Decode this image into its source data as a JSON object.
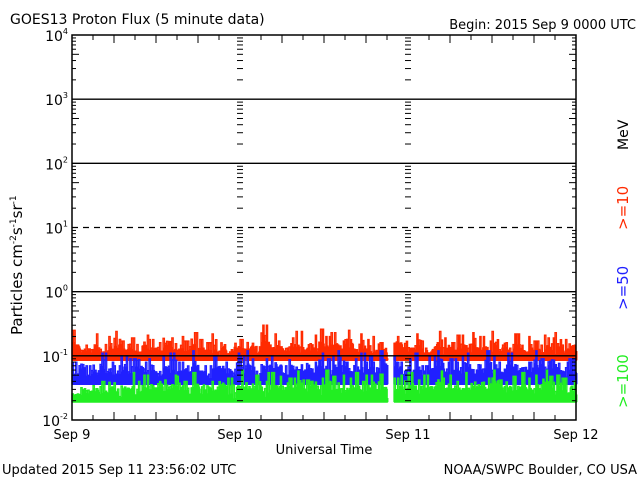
{
  "chart_data": {
    "type": "line",
    "title": "GOES13 Proton Flux (5 minute data)",
    "begin_label": "Begin: 2015 Sep 9 0000 UTC",
    "xlabel": "Universal Time",
    "ylabel_parts": [
      "Particles cm",
      "-2",
      "s",
      "-1",
      "sr",
      "-1"
    ],
    "x_unit": "hours since 2015 Sep 9 0000 UTC",
    "xlim": [
      0,
      72
    ],
    "x_ticks": [
      {
        "x": 0,
        "label": "Sep 9"
      },
      {
        "x": 24,
        "label": "Sep 10"
      },
      {
        "x": 48,
        "label": "Sep 11"
      },
      {
        "x": 72,
        "label": "Sep 12"
      }
    ],
    "yscale": "log",
    "ylim": [
      0.01,
      10000
    ],
    "y_ticks": [
      {
        "exp": "4"
      },
      {
        "exp": "3"
      },
      {
        "exp": "2"
      },
      {
        "exp": "1"
      },
      {
        "exp": "0"
      },
      {
        "exp": "-1"
      },
      {
        "exp": "-2"
      }
    ],
    "dashed_threshold": 10,
    "unit_label": "MeV",
    "series": [
      {
        "name": ">=10",
        "color": "#ff2a00",
        "low": 0.085,
        "hourly_max": [
          0.25,
          0.16,
          0.18,
          0.22,
          0.15,
          0.2,
          0.24,
          0.17,
          0.19,
          0.15,
          0.21,
          0.18,
          0.16,
          0.25,
          0.19,
          0.2,
          0.17,
          0.23,
          0.18,
          0.16,
          0.22,
          0.2,
          0.15,
          0.19,
          0.18,
          0.21,
          0.17,
          0.3,
          0.2,
          0.22,
          0.16,
          0.19,
          0.24,
          0.18,
          0.21,
          0.26,
          0.2,
          0.23,
          0.17,
          0.25,
          0.19,
          0.22,
          0.18,
          0.2,
          0.16,
          null,
          0.25,
          0.21,
          0.18,
          0.22,
          0.17,
          0.2,
          0.24,
          0.19,
          0.16,
          0.21,
          0.18,
          0.23,
          0.2,
          0.17,
          0.24,
          0.19,
          0.16,
          0.22,
          0.18,
          0.2,
          0.17,
          0.21,
          0.19,
          0.23,
          0.18,
          0.2
        ]
      },
      {
        "name": ">=50",
        "color": "#2020ff",
        "low": 0.036,
        "hourly_max": [
          0.08,
          0.1,
          0.07,
          0.09,
          0.11,
          0.08,
          0.07,
          0.1,
          0.09,
          0.12,
          0.08,
          0.09,
          0.07,
          0.1,
          0.11,
          0.08,
          0.09,
          0.12,
          0.08,
          0.07,
          0.1,
          0.09,
          0.08,
          0.11,
          0.1,
          0.12,
          0.08,
          0.09,
          0.1,
          0.11,
          0.07,
          0.12,
          0.09,
          0.1,
          0.08,
          0.11,
          0.09,
          0.1,
          0.12,
          0.08,
          0.09,
          0.11,
          0.1,
          0.08,
          0.12,
          null,
          0.1,
          0.08,
          0.09,
          0.11,
          0.07,
          0.1,
          0.12,
          0.08,
          0.09,
          0.1,
          0.11,
          0.08,
          0.09,
          0.12,
          0.1,
          0.08,
          0.11,
          0.09,
          0.1,
          0.08,
          0.12,
          0.09,
          0.11,
          0.1,
          0.08,
          0.09
        ]
      },
      {
        "name": ">=100",
        "color": "#22ee22",
        "low": 0.019,
        "hourly_max": [
          0.03,
          0.04,
          0.035,
          0.045,
          0.04,
          0.05,
          0.038,
          0.045,
          0.055,
          0.04,
          0.05,
          0.045,
          0.06,
          0.042,
          0.05,
          0.048,
          0.04,
          0.055,
          0.045,
          0.05,
          0.04,
          0.052,
          0.045,
          0.05,
          0.06,
          0.045,
          0.05,
          0.04,
          0.055,
          0.048,
          0.05,
          0.045,
          0.058,
          0.042,
          0.05,
          0.045,
          0.06,
          0.048,
          0.05,
          0.045,
          0.055,
          0.04,
          0.05,
          0.048,
          0.052,
          null,
          0.045,
          0.05,
          0.055,
          0.042,
          0.05,
          0.048,
          0.058,
          0.045,
          0.05,
          0.04,
          0.055,
          0.048,
          0.05,
          0.045,
          0.06,
          0.042,
          0.05,
          0.048,
          0.055,
          0.045,
          0.05,
          0.06,
          0.048,
          0.05,
          0.045,
          0.052
        ]
      }
    ]
  },
  "footer": {
    "updated": "Updated 2015 Sep 11 23:56:02 UTC",
    "source": "NOAA/SWPC Boulder, CO USA"
  }
}
